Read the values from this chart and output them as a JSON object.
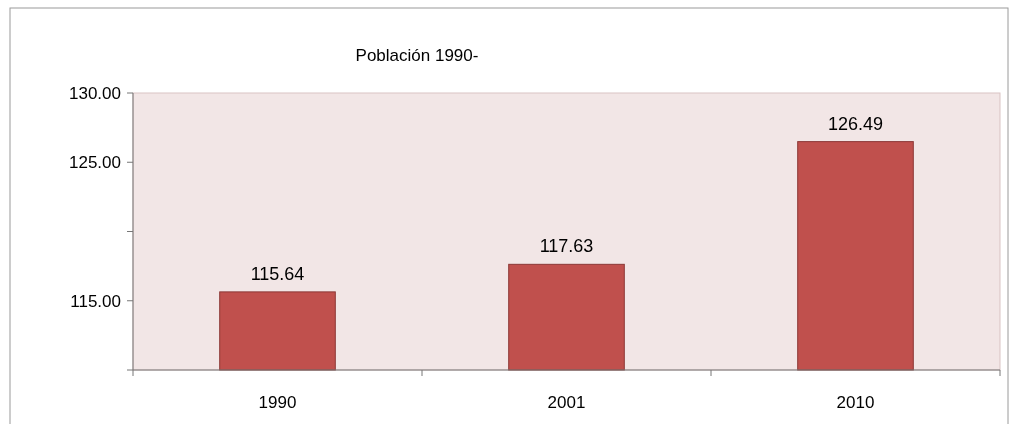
{
  "chart_data": {
    "type": "bar",
    "title": "Población 1990-",
    "categories": [
      "1990",
      "2001",
      "2010"
    ],
    "values": [
      115.64,
      117.63,
      126.49
    ],
    "color": "#c0504d",
    "ylim": [
      110,
      130
    ],
    "yticks": [
      {
        "value": 110,
        "label": null
      },
      {
        "value": 115,
        "label": "115.00"
      },
      {
        "value": 120,
        "label": null
      },
      {
        "value": 125,
        "label": "125.00"
      },
      {
        "value": 130,
        "label": "130.00"
      }
    ],
    "data_labels": true,
    "grid": false
  }
}
